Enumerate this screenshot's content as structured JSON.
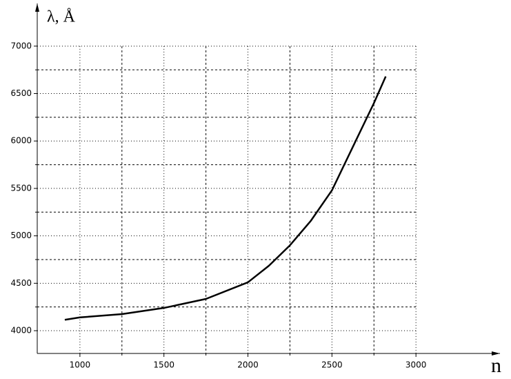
{
  "chart_data": {
    "type": "line",
    "x_label": "n",
    "y_label": "λ, Å",
    "x": [
      910,
      1000,
      1250,
      1500,
      1750,
      2000,
      2125,
      2250,
      2375,
      2500,
      2625,
      2750,
      2820
    ],
    "series": [
      {
        "color": "#000000",
        "values": [
          4115,
          4140,
          4175,
          4240,
          4335,
          4510,
          4685,
          4900,
          5160,
          5480,
          5940,
          6400,
          6680
        ]
      }
    ],
    "xlim": [
      746,
      3500
    ],
    "ylim": [
      3760,
      7450
    ],
    "xticks": [
      1000,
      1500,
      2000,
      2500,
      3000
    ],
    "yticks": [
      4000,
      4500,
      5000,
      5500,
      6000,
      6500,
      7000
    ],
    "x_minor_ticks": [
      1250,
      1750,
      2250,
      2750
    ],
    "y_minor_ticks": [
      4250,
      4750,
      5250,
      5750,
      6250,
      6750
    ],
    "grid": true
  }
}
